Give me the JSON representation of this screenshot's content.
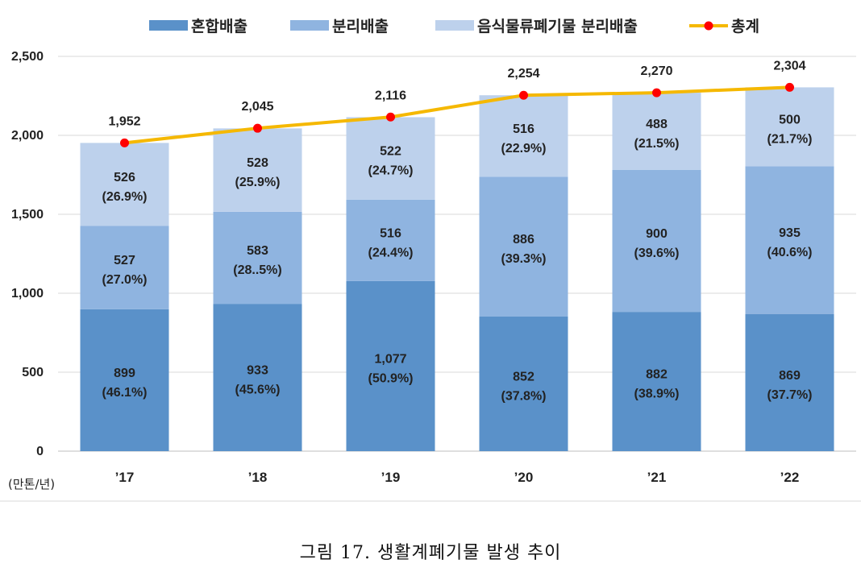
{
  "chart_data": {
    "type": "bar",
    "stacked": true,
    "categories": [
      "’17",
      "’18",
      "’19",
      "’20",
      "’21",
      "’22"
    ],
    "series": [
      {
        "name": "혼합배출",
        "color": "#5a91c9",
        "values": [
          899,
          933,
          1077,
          852,
          882,
          869
        ],
        "pct": [
          "(46.1%)",
          "(45.6%)",
          "(50.9%)",
          "(37.8%)",
          "(38.9%)",
          "(37.7%)"
        ]
      },
      {
        "name": "분리배출",
        "color": "#8fb4e0",
        "values": [
          527,
          583,
          516,
          886,
          900,
          935
        ],
        "pct": [
          "(27.0%)",
          "(28..5%)",
          "(24.4%)",
          "(39.3%)",
          "(39.6%)",
          "(40.6%)"
        ]
      },
      {
        "name": "음식물류폐기물 분리배출",
        "color": "#bdd1ec",
        "values": [
          526,
          528,
          522,
          516,
          488,
          500
        ],
        "pct": [
          "(26.9%)",
          "(25.9%)",
          "(24.7%)",
          "(22.9%)",
          "(21.5%)",
          "(21.7%)"
        ]
      }
    ],
    "line": {
      "name": "총계",
      "color": "#f5b800",
      "marker_color": "#ff0000",
      "values": [
        1952,
        2045,
        2116,
        2254,
        2270,
        2304
      ]
    },
    "value_labels": [
      "899",
      "933",
      "1,077",
      "852",
      "882",
      "869",
      "527",
      "583",
      "516",
      "886",
      "900",
      "935",
      "526",
      "528",
      "522",
      "516",
      "488",
      "500"
    ],
    "total_labels": [
      "1,952",
      "2,045",
      "2,116",
      "2,254",
      "2,270",
      "2,304"
    ],
    "yticks": [
      "0",
      "500",
      "1,000",
      "1,500",
      "2,000",
      "2,500"
    ],
    "ylim": [
      0,
      2500
    ],
    "grid": true,
    "legend_position": "top",
    "unit_label": "(만톤/년)"
  },
  "caption": "그림 17. 생활계폐기물 발생 추이"
}
